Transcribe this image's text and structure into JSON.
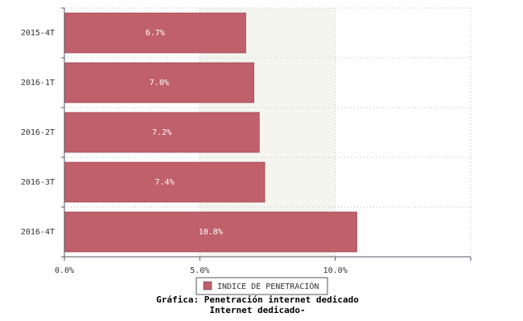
{
  "chart_data": {
    "type": "barh",
    "title": "Gráfica: Penetración internet dedicado",
    "subtitle": "Internet dedicado-",
    "categories": [
      "2015-4T",
      "2016-1T",
      "2016-2T",
      "2016-3T",
      "2016-4T"
    ],
    "series": [
      {
        "name": "INDICE DE PENETRACIÓN",
        "color": "#c0606a",
        "values": [
          6.7,
          7.0,
          7.2,
          7.4,
          10.8
        ],
        "value_labels": [
          "6.7%",
          "7.0%",
          "7.2%",
          "7.4%",
          "10.8%"
        ]
      }
    ],
    "xlim": [
      0,
      15
    ],
    "xticks": [
      {
        "value": 0,
        "label": "0.0%"
      },
      {
        "value": 5,
        "label": "5.0%"
      },
      {
        "value": 10,
        "label": "10.0%"
      },
      {
        "value": 15,
        "label": ""
      }
    ],
    "grid": true,
    "legend": "bottom"
  }
}
